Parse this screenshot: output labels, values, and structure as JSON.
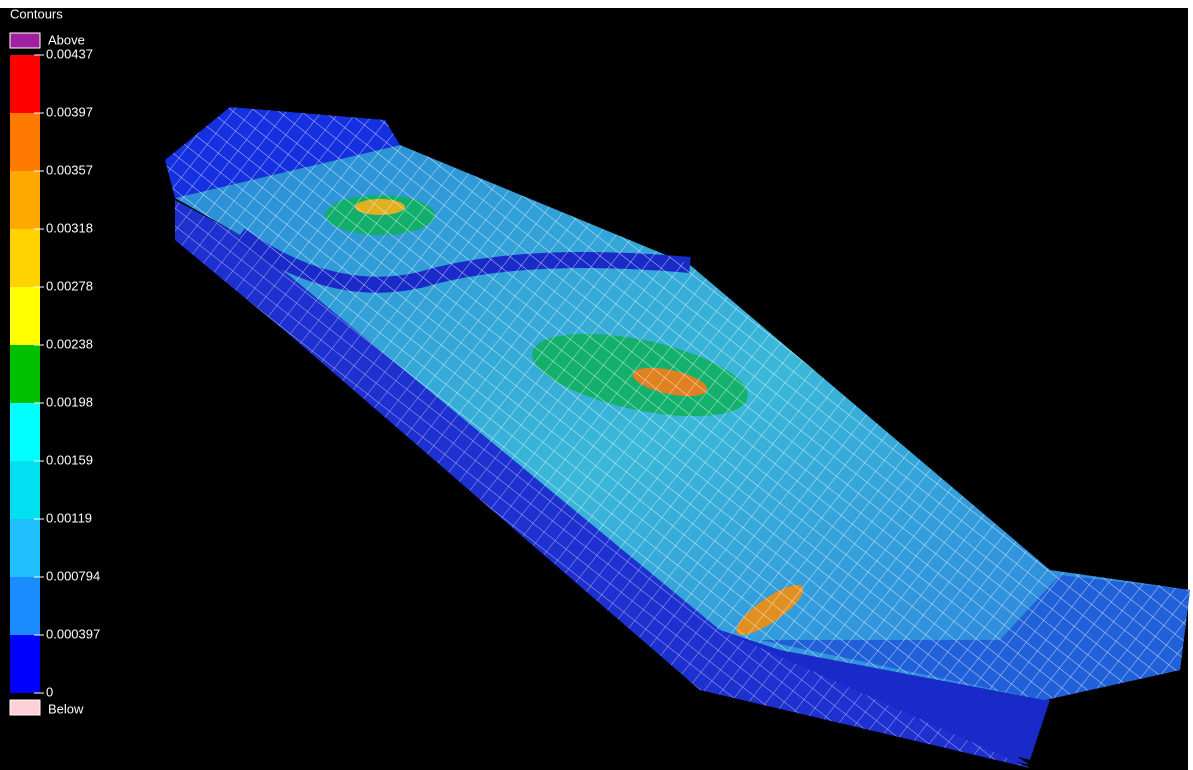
{
  "legend": {
    "title": "Contours",
    "above": "Above",
    "below": "Below",
    "above_color": "#a020a0",
    "below_color": "#ffd0d8",
    "levels": [
      "0.00437",
      "0.00397",
      "0.00357",
      "0.00318",
      "0.00278",
      "0.00238",
      "0.00198",
      "0.00159",
      "0.00119",
      "0.000794",
      "0.000397",
      "0"
    ],
    "colors": [
      "#ff0000",
      "#ff7a00",
      "#ffa800",
      "#ffd200",
      "#ffff00",
      "#00c000",
      "#00ffff",
      "#00e0f0",
      "#20c0ff",
      "#1a8cff",
      "#0000ff"
    ]
  }
}
